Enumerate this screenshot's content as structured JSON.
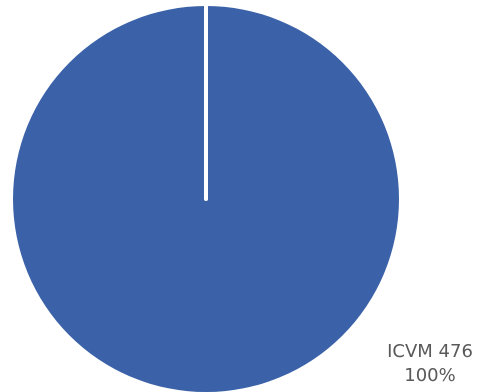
{
  "chart_data": {
    "type": "pie",
    "slices": [
      {
        "category": "ICVM 476",
        "value": 100,
        "percent_label": "100%",
        "color": "#3B62A8"
      }
    ],
    "title": "",
    "legend": "none",
    "slice_separator_color": "#FFFFFF"
  }
}
